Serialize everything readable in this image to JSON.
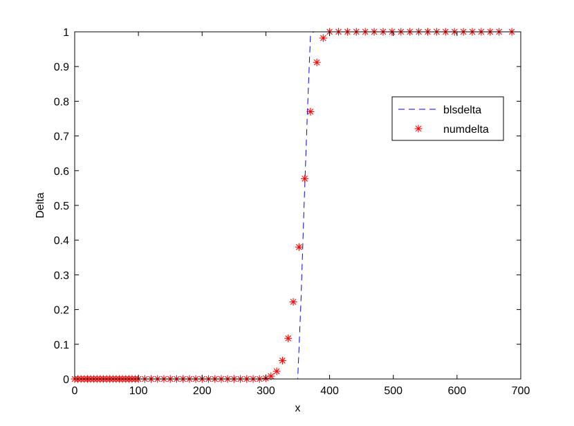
{
  "chart_data": {
    "type": "line",
    "title": "",
    "xlabel": "x",
    "ylabel": "Delta",
    "xlim": [
      0,
      700
    ],
    "ylim": [
      0,
      1
    ],
    "x_ticks": [
      0,
      100,
      200,
      300,
      400,
      500,
      600,
      700
    ],
    "y_ticks": [
      0,
      0.1,
      0.2,
      0.3,
      0.4,
      0.5,
      0.6,
      0.7,
      0.8,
      0.9,
      1
    ],
    "x_tick_labels": [
      "0",
      "100",
      "200",
      "300",
      "400",
      "500",
      "600",
      "700"
    ],
    "y_tick_labels": [
      "0",
      "0.1",
      "0.2",
      "0.3",
      "0.4",
      "0.5",
      "0.6",
      "0.7",
      "0.8",
      "0.9",
      "1"
    ],
    "grid": false,
    "legend_position": "upper-right",
    "series": [
      {
        "name": "blsdelta",
        "style": "dashed",
        "color": "#0000ff",
        "x": [
          0,
          350,
          355,
          360,
          365,
          370,
          375,
          380,
          400,
          500,
          600,
          690
        ],
        "y": [
          0,
          0,
          0.22,
          0.5,
          0.76,
          0.99,
          1,
          1,
          1,
          1,
          1,
          1
        ]
      },
      {
        "name": "numdelta",
        "style": "asterisk",
        "color": "#ff0000",
        "x": [
          0,
          5,
          10,
          15,
          20,
          25,
          30,
          35,
          40,
          45,
          50,
          55,
          60,
          65,
          70,
          75,
          80,
          85,
          90,
          95,
          100,
          110,
          120,
          130,
          140,
          150,
          160,
          170,
          180,
          190,
          200,
          210,
          220,
          230,
          240,
          250,
          260,
          270,
          280,
          290,
          300,
          308,
          317,
          326,
          335,
          343,
          352,
          361,
          370,
          380,
          390,
          400,
          414,
          428,
          442,
          456,
          470,
          484,
          498,
          512,
          526,
          540,
          554,
          568,
          582,
          596,
          610,
          624,
          638,
          652,
          666,
          686
        ],
        "y": [
          0,
          0,
          0,
          0,
          0,
          0,
          0,
          0,
          0,
          0,
          0,
          0,
          0,
          0,
          0,
          0,
          0,
          0,
          0,
          0,
          0,
          0,
          0,
          0,
          0,
          0,
          0,
          0,
          0,
          0,
          0,
          0,
          0,
          0,
          0,
          0,
          0,
          0,
          0,
          0,
          0.002,
          0.008,
          0.022,
          0.053,
          0.117,
          0.222,
          0.38,
          0.577,
          0.77,
          0.912,
          0.982,
          1,
          1,
          1,
          1,
          1,
          1,
          1,
          1,
          1,
          1,
          1,
          1,
          1,
          1,
          1,
          1,
          1,
          1,
          1,
          1,
          1
        ]
      }
    ]
  }
}
